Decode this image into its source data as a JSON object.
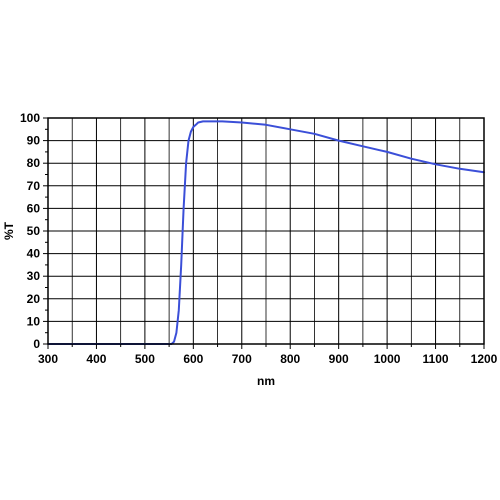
{
  "chart_data": {
    "type": "line",
    "title": "",
    "xlabel": "nm",
    "ylabel": "%T",
    "xlim": [
      300,
      1200
    ],
    "ylim": [
      0,
      100
    ],
    "x_ticks": [
      300,
      400,
      500,
      600,
      700,
      800,
      900,
      1000,
      1100,
      1200
    ],
    "x_tick_labels": [
      "300",
      "400",
      "500",
      "600",
      "700",
      "800",
      "900",
      "1000",
      "1100",
      "1200"
    ],
    "y_ticks": [
      0,
      10,
      20,
      30,
      40,
      50,
      60,
      70,
      80,
      90,
      100
    ],
    "y_tick_labels": [
      "0",
      "10",
      "20",
      "30",
      "40",
      "50",
      "60",
      "70",
      "80",
      "90",
      "100"
    ],
    "x_minor_step": 50,
    "y_minor_step": 5,
    "grid": true,
    "legend": "none",
    "series_color": "#3b4fd8",
    "series": [
      {
        "x": [
          300,
          540,
          555,
          560,
          565,
          570,
          575,
          580,
          585,
          590,
          595,
          600,
          605,
          610,
          620,
          640,
          660,
          700,
          750,
          800,
          850,
          900,
          950,
          1000,
          1050,
          1100,
          1150,
          1200
        ],
        "y": [
          0,
          0,
          0,
          1,
          5,
          15,
          35,
          60,
          80,
          90,
          94,
          96,
          97,
          98,
          98.5,
          98.5,
          98.5,
          98,
          97,
          95,
          93,
          90,
          87.5,
          85,
          82,
          79.5,
          77.5,
          76
        ]
      }
    ]
  }
}
